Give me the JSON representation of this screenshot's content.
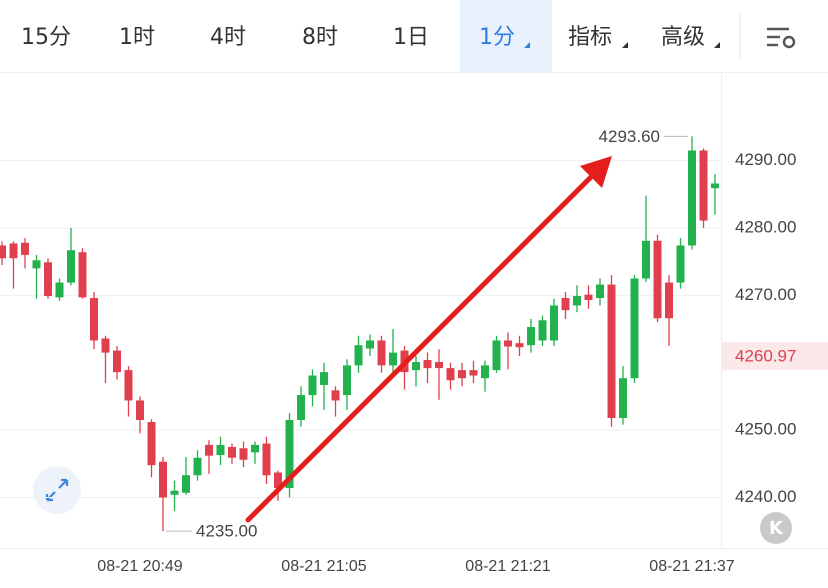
{
  "tabs": [
    "15分",
    "1时",
    "4时",
    "8时",
    "1日",
    "1分",
    "指标",
    "高级"
  ],
  "k_button": "K",
  "chart_data": {
    "type": "candlestick",
    "up_color": "#22b14c",
    "down_color": "#e0404e",
    "categories": [
      null,
      null,
      null,
      null,
      null,
      null,
      null,
      null,
      null,
      null,
      null,
      null,
      "08-21 20:49",
      null,
      null,
      null,
      null,
      null,
      null,
      null,
      null,
      null,
      null,
      null,
      null,
      null,
      null,
      null,
      "08-21 21:05",
      null,
      null,
      null,
      null,
      null,
      null,
      null,
      null,
      null,
      null,
      null,
      null,
      null,
      null,
      null,
      "08-21 21:21",
      null,
      null,
      null,
      null,
      null,
      null,
      null,
      null,
      null,
      null,
      null,
      null,
      null,
      null,
      null,
      "08-21 21:37",
      null,
      null
    ],
    "open": [
      4277.4,
      4277.7,
      4277.8,
      4274,
      4274.9,
      4269.7,
      4271.9,
      4276.4,
      4269.6,
      4263.6,
      4261.8,
      4258.9,
      4254.4,
      4251.2,
      4245.3,
      4240.4,
      4240.7,
      4243.3,
      4247.8,
      4246.3,
      4247.5,
      4247.3,
      4246.7,
      4248,
      4243.7,
      4241.4,
      4251.5,
      4255.2,
      4256.7,
      4255.9,
      4255.2,
      4259.6,
      4262.1,
      4263.3,
      4259.6,
      4261.8,
      4258.9,
      4260.4,
      4260.1,
      4259.2,
      4258.9,
      4258.9,
      4257.7,
      4258.9,
      4263.3,
      4262.9,
      4262.6,
      4263.3,
      4263.3,
      4269.6,
      4268.5,
      4270.1,
      4269.6,
      4271.6,
      4251.8,
      4257.7,
      4272.5,
      4278.1,
      4271.9,
      4271.9,
      4277.4,
      4291.5,
      4285.9
    ],
    "high": [
      4278,
      4278,
      4278.5,
      4276,
      4275.5,
      4272.5,
      4280,
      4277,
      4270.5,
      4264,
      4262.5,
      4259.5,
      4255,
      4251.6,
      4246,
      4242.5,
      4246,
      4247,
      4248.5,
      4249,
      4248,
      4248.3,
      4248.3,
      4249,
      4244,
      4252.5,
      4256.5,
      4259,
      4260,
      4256.5,
      4260.5,
      4264,
      4264.2,
      4264,
      4265,
      4262.5,
      4261,
      4261.5,
      4262,
      4260,
      4260,
      4260.3,
      4260.3,
      4264,
      4264.5,
      4264,
      4266.5,
      4267,
      4269.5,
      4270.5,
      4271.5,
      4271.5,
      4272.5,
      4273,
      4259.5,
      4273,
      4284.8,
      4279,
      4273,
      4278.5,
      4293.6,
      4291.8,
      4288
    ],
    "low": [
      4274.5,
      4271,
      4274,
      4269.5,
      4269.5,
      4269.2,
      4271.5,
      4269.5,
      4262,
      4257,
      4257.5,
      4252,
      4249.5,
      4243,
      4235,
      4238,
      4240.4,
      4242.5,
      4243.5,
      4244.8,
      4245,
      4244.5,
      4245,
      4242,
      4239.5,
      4240,
      4250.5,
      4253.5,
      4253,
      4252,
      4253,
      4258.5,
      4261,
      4258.5,
      4258,
      4256,
      4256.5,
      4257,
      4254.5,
      4256,
      4256.5,
      4257,
      4255.7,
      4258.5,
      4259,
      4261,
      4261.5,
      4262.5,
      4262.5,
      4266.5,
      4267.5,
      4268,
      4268.5,
      4250.5,
      4250.8,
      4257,
      4272,
      4266,
      4262.5,
      4271,
      4276.8,
      4280,
      4282
    ],
    "close": [
      4275.5,
      4275.5,
      4276,
      4275.2,
      4269.9,
      4271.9,
      4276.7,
      4269.7,
      4263.3,
      4261.5,
      4258.6,
      4254.4,
      4251.5,
      4244.8,
      4240,
      4241,
      4243.3,
      4245.9,
      4246.2,
      4247.8,
      4245.9,
      4245.6,
      4247.8,
      4243.3,
      4241.4,
      4251.5,
      4255.2,
      4258.1,
      4258.6,
      4254.4,
      4259.6,
      4262.6,
      4263.3,
      4259.6,
      4261.5,
      4258.6,
      4260.1,
      4259.2,
      4259.2,
      4257.4,
      4257.7,
      4258.1,
      4259.6,
      4263.3,
      4262.4,
      4262.3,
      4265.3,
      4266.3,
      4268.5,
      4267.8,
      4269.9,
      4269.3,
      4271.6,
      4251.8,
      4257.7,
      4272.5,
      4278.1,
      4266.6,
      4266.6,
      4277.4,
      4291.5,
      4281.1,
      4286.6
    ],
    "ylim": [
      4232.5,
      4303
    ],
    "yticks": [
      {
        "value": 4240,
        "label": "4240.00"
      },
      {
        "value": 4250,
        "label": "4250.00"
      },
      {
        "value": 4270,
        "label": "4270.00"
      },
      {
        "value": 4280,
        "label": "4280.00"
      },
      {
        "value": 4290,
        "label": "4290.00"
      }
    ],
    "grid": true,
    "current_price": {
      "value": 4260.97,
      "label": "4260.97"
    },
    "annotations": [
      {
        "value": 4293.6,
        "label": "4293.60"
      },
      {
        "value": 4235,
        "label": "4235.00"
      }
    ]
  }
}
